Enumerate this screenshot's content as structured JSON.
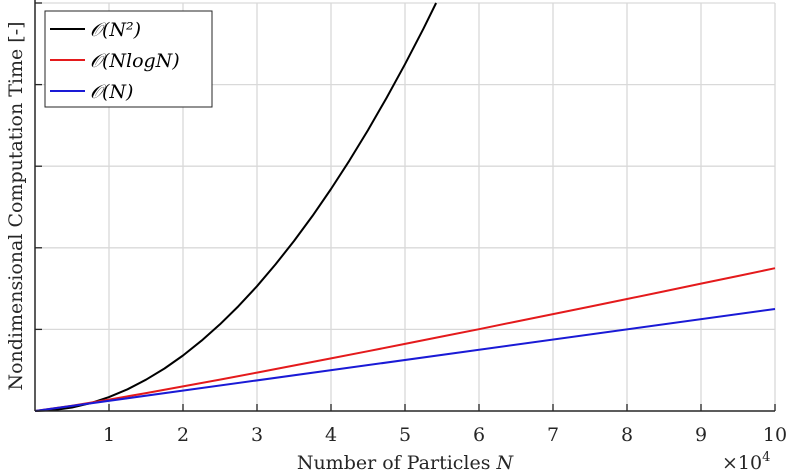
{
  "chart_data": {
    "type": "line",
    "title": "",
    "xlabel": "Number of Particles",
    "xlabel_symbol": "N",
    "x_multiplier_label": "×10",
    "x_multiplier_exp": "4",
    "ylabel": "Nondimensional Computation Time [-]",
    "xlim": [
      0,
      10
    ],
    "ylim": [
      0,
      5
    ],
    "x_ticks": [
      "1",
      "2",
      "3",
      "4",
      "5",
      "6",
      "7",
      "8",
      "9",
      "10"
    ],
    "y_ticks_labeled": false,
    "grid": true,
    "legend_position": "top-left",
    "series": [
      {
        "name": "𝒪(N²)",
        "color": "#000000",
        "x": [
          0,
          0.25,
          0.5,
          0.75,
          1,
          1.25,
          1.5,
          1.75,
          2,
          2.25,
          2.5,
          2.75,
          3,
          3.25,
          3.5,
          3.75,
          4,
          4.25,
          4.5,
          4.75,
          5,
          5.25,
          5.42
        ],
        "y": [
          0,
          0.011,
          0.043,
          0.096,
          0.17,
          0.266,
          0.383,
          0.521,
          0.68,
          0.861,
          1.063,
          1.286,
          1.53,
          1.796,
          2.083,
          2.391,
          2.72,
          3.071,
          3.443,
          3.836,
          4.25,
          4.686,
          5.0
        ]
      },
      {
        "name": "𝒪(NlogN)",
        "color": "#e41a1c",
        "x": [
          0,
          0.5,
          1,
          1.5,
          2,
          2.5,
          3,
          3.5,
          4,
          4.5,
          5,
          5.5,
          6,
          6.5,
          7,
          7.5,
          8,
          8.5,
          9,
          9.5,
          10
        ],
        "y": [
          0,
          0.065,
          0.14,
          0.219,
          0.301,
          0.385,
          0.47,
          0.557,
          0.644,
          0.733,
          0.822,
          0.913,
          1.003,
          1.095,
          1.187,
          1.28,
          1.373,
          1.466,
          1.561,
          1.655,
          1.75
        ]
      },
      {
        "name": "𝒪(N)",
        "color": "#1a1ad6",
        "x": [
          0,
          10
        ],
        "y": [
          0,
          1.25
        ]
      }
    ]
  }
}
